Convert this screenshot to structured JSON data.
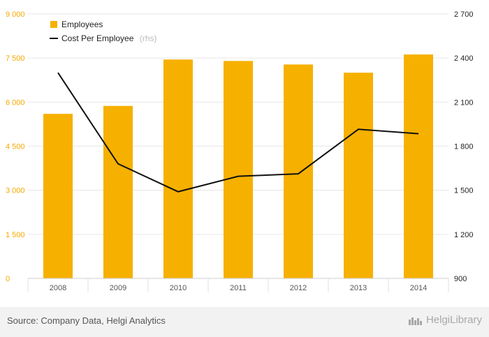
{
  "chart_data": {
    "type": "bar",
    "categories": [
      "2008",
      "2009",
      "2010",
      "2011",
      "2012",
      "2013",
      "2014"
    ],
    "series": [
      {
        "name": "Employees",
        "type": "bar",
        "axis": "left",
        "color": "#f6b000",
        "values": [
          5600,
          5870,
          7450,
          7400,
          7280,
          7000,
          7620
        ]
      },
      {
        "name": "Cost Per Employee",
        "type": "line",
        "axis": "right",
        "color": "#111111",
        "values": [
          2300,
          1680,
          1490,
          1595,
          1612,
          1915,
          1885
        ]
      }
    ],
    "y_left": {
      "min": 0,
      "max": 9000,
      "ticks": [
        "0",
        "1 500",
        "3 000",
        "4 500",
        "6 000",
        "7 500",
        "9 000"
      ]
    },
    "y_right": {
      "min": 900,
      "max": 2700,
      "ticks": [
        "900",
        "1 200",
        "1 500",
        "1 800",
        "2 100",
        "2 400",
        "2 700"
      ]
    },
    "legend": {
      "position": "top-left",
      "items": [
        {
          "label": "Employees",
          "note": ""
        },
        {
          "label": "Cost Per Employee",
          "note": "(rhs)"
        }
      ]
    },
    "grid": true
  },
  "footer": {
    "source": "Source: Company Data, Helgi Analytics",
    "brand": "HelgiLibrary"
  }
}
